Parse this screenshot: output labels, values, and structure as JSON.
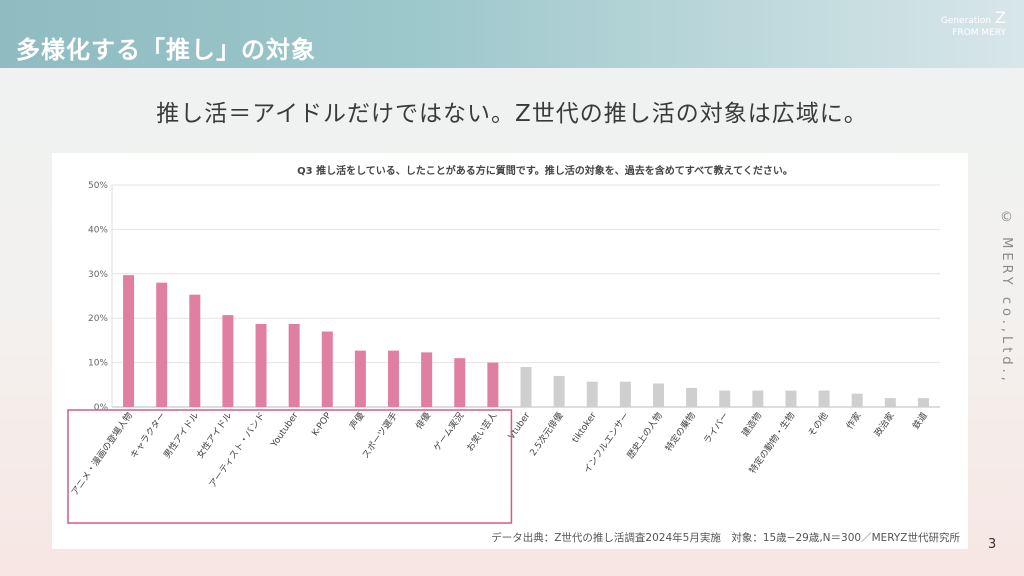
{
  "header": {
    "title": "多様化する「推し」の対象",
    "brand_line1": "Generation",
    "brand_letter": "Z",
    "brand_line2": "FROM MERY"
  },
  "subtitle": "推し活＝アイドルだけではない。Z世代の推し活の対象は広域に。",
  "copyright": "© MERY co.,Ltd.,",
  "page_number": "3",
  "colors": {
    "highlight_bar": "#e07fa2",
    "other_bar": "#cfcfcf",
    "highlight_box": "#d65b8a",
    "grid": "#e4e4e4"
  },
  "chart_data": {
    "type": "bar",
    "title": "Q3 推し活をしている、したことがある方に質問です。推し活の対象を、過去を含めてすべて教えてください。",
    "categories": [
      "アニメ・漫画の登場人物",
      "キャラクター",
      "男性アイドル",
      "女性アイドル",
      "アーティスト・バンド",
      "Youtuber",
      "K-POP",
      "声優",
      "スポーツ選手",
      "俳優",
      "ゲーム実況",
      "お笑い芸人",
      "Vtuber",
      "2.5次元俳優",
      "tiktoker",
      "インフルエンサー",
      "歴史上の人物",
      "特定の乗物",
      "ライバー",
      "建造物",
      "特定の動物・生物",
      "その他",
      "作家",
      "政治家",
      "鉄道"
    ],
    "values": [
      29.7,
      28.0,
      25.3,
      20.7,
      18.7,
      18.7,
      17.0,
      12.7,
      12.7,
      12.3,
      11.0,
      10.0,
      9.0,
      7.0,
      5.7,
      5.7,
      5.3,
      4.3,
      3.7,
      3.7,
      3.7,
      3.7,
      3.0,
      2.0,
      2.0
    ],
    "highlighted_count": 12,
    "ylim": [
      0,
      50
    ],
    "yticks": [
      "0%",
      "10%",
      "20%",
      "30%",
      "40%",
      "50%"
    ],
    "grid": true,
    "source": "データ出典：Z世代の推し活調査2024年5月実施　対象：15歳−29歳,N＝300／MERYZ世代研究所"
  }
}
